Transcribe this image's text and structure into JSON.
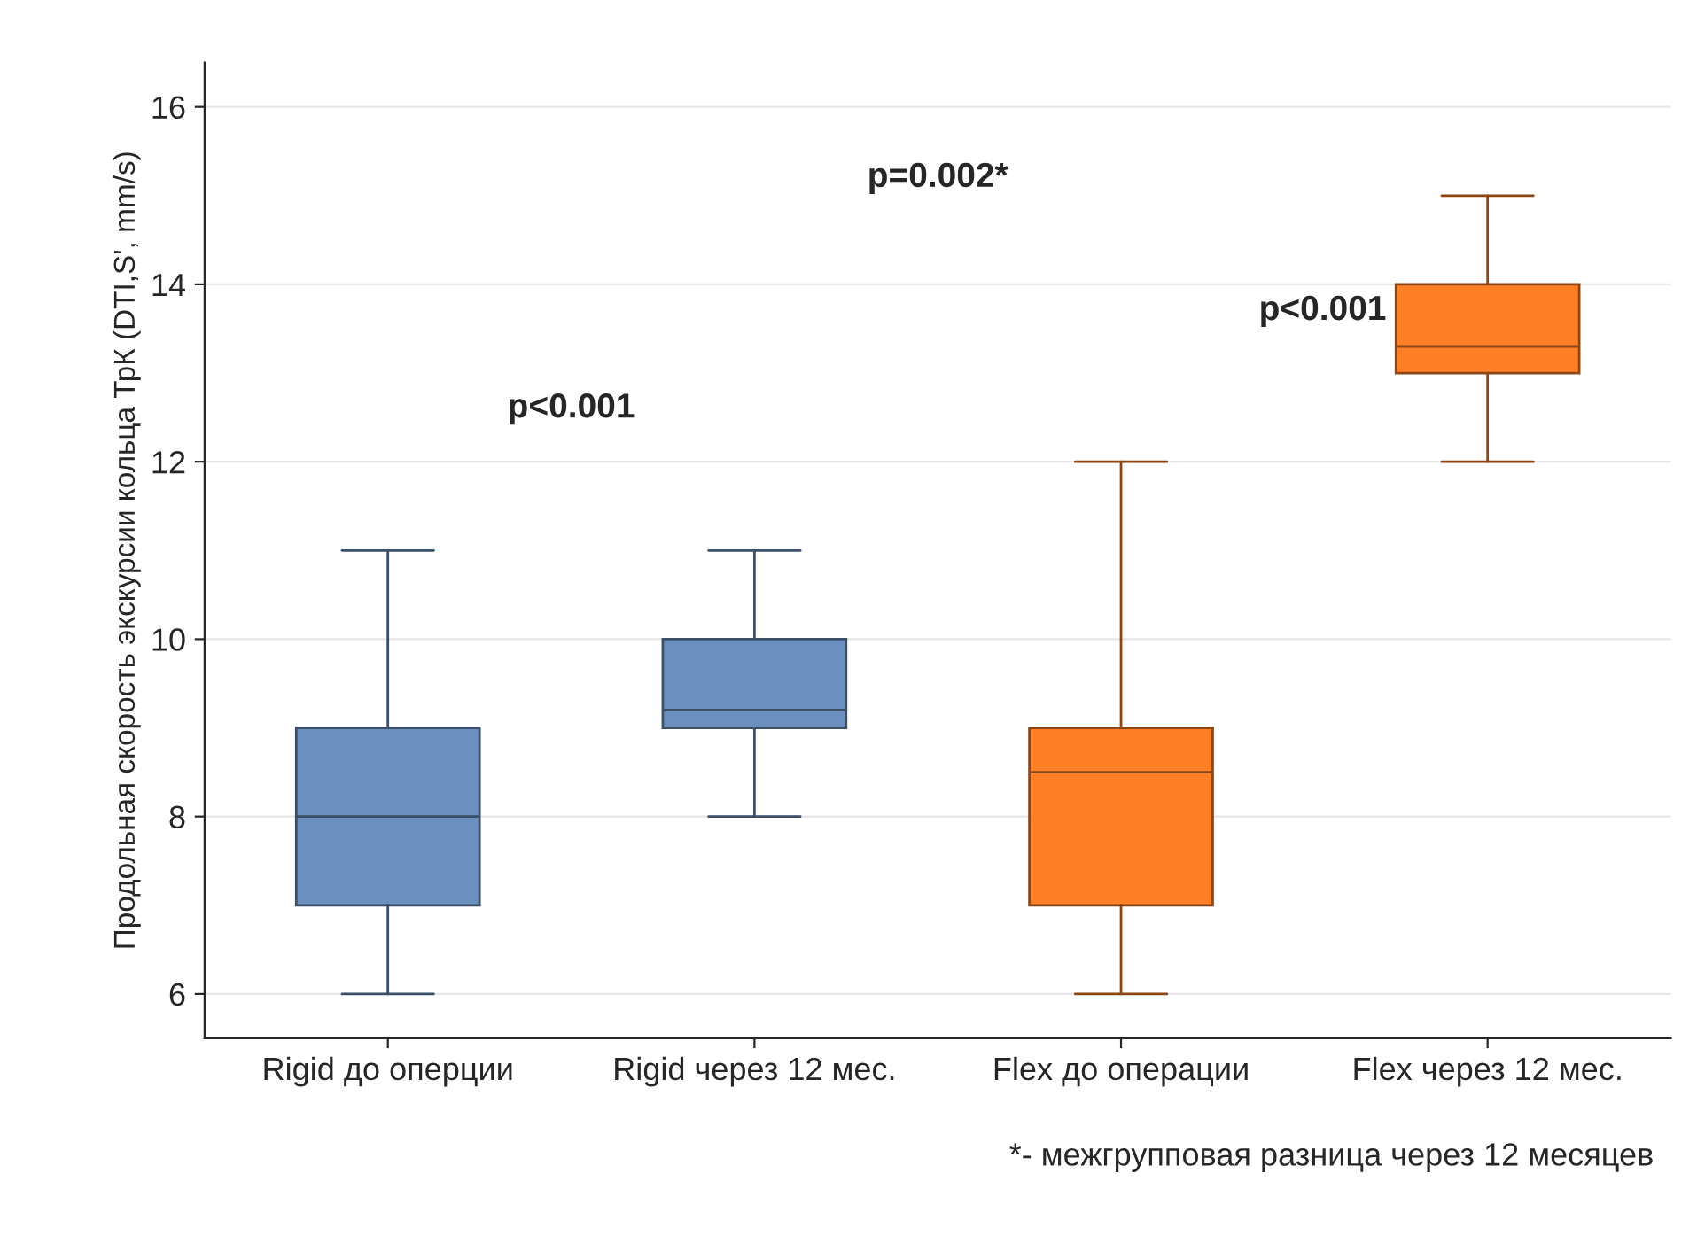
{
  "chart_data": {
    "type": "box",
    "ylabel": "Продольная скорость экскурсии кольца ТрК (DTI,S', mm/s)",
    "categories": [
      "Rigid до оперции",
      "Rigid через 12 мес.",
      "Flex до операции",
      "Flex через 12 мес."
    ],
    "boxes": [
      {
        "low": 6,
        "q1": 7,
        "median": 8,
        "q3": 9,
        "high": 11
      },
      {
        "low": 8,
        "q1": 9,
        "median": 9.2,
        "q3": 10,
        "high": 11
      },
      {
        "low": 6,
        "q1": 7,
        "median": 8.5,
        "q3": 9,
        "high": 12
      },
      {
        "low": 12,
        "q1": 13,
        "median": 13.3,
        "q3": 14,
        "high": 15
      }
    ],
    "colors": [
      "#6b8fbf",
      "#6b8fbf",
      "#ff7f27",
      "#ff7f27"
    ],
    "ylim": [
      5.5,
      16.5
    ],
    "yticks": [
      6,
      8,
      10,
      12,
      14,
      16
    ],
    "grid": "y",
    "annotations": [
      "p<0.001",
      "p=0.002*",
      "p<0.001",
      "*- межгрупповая разница через 12 месяцев"
    ]
  }
}
